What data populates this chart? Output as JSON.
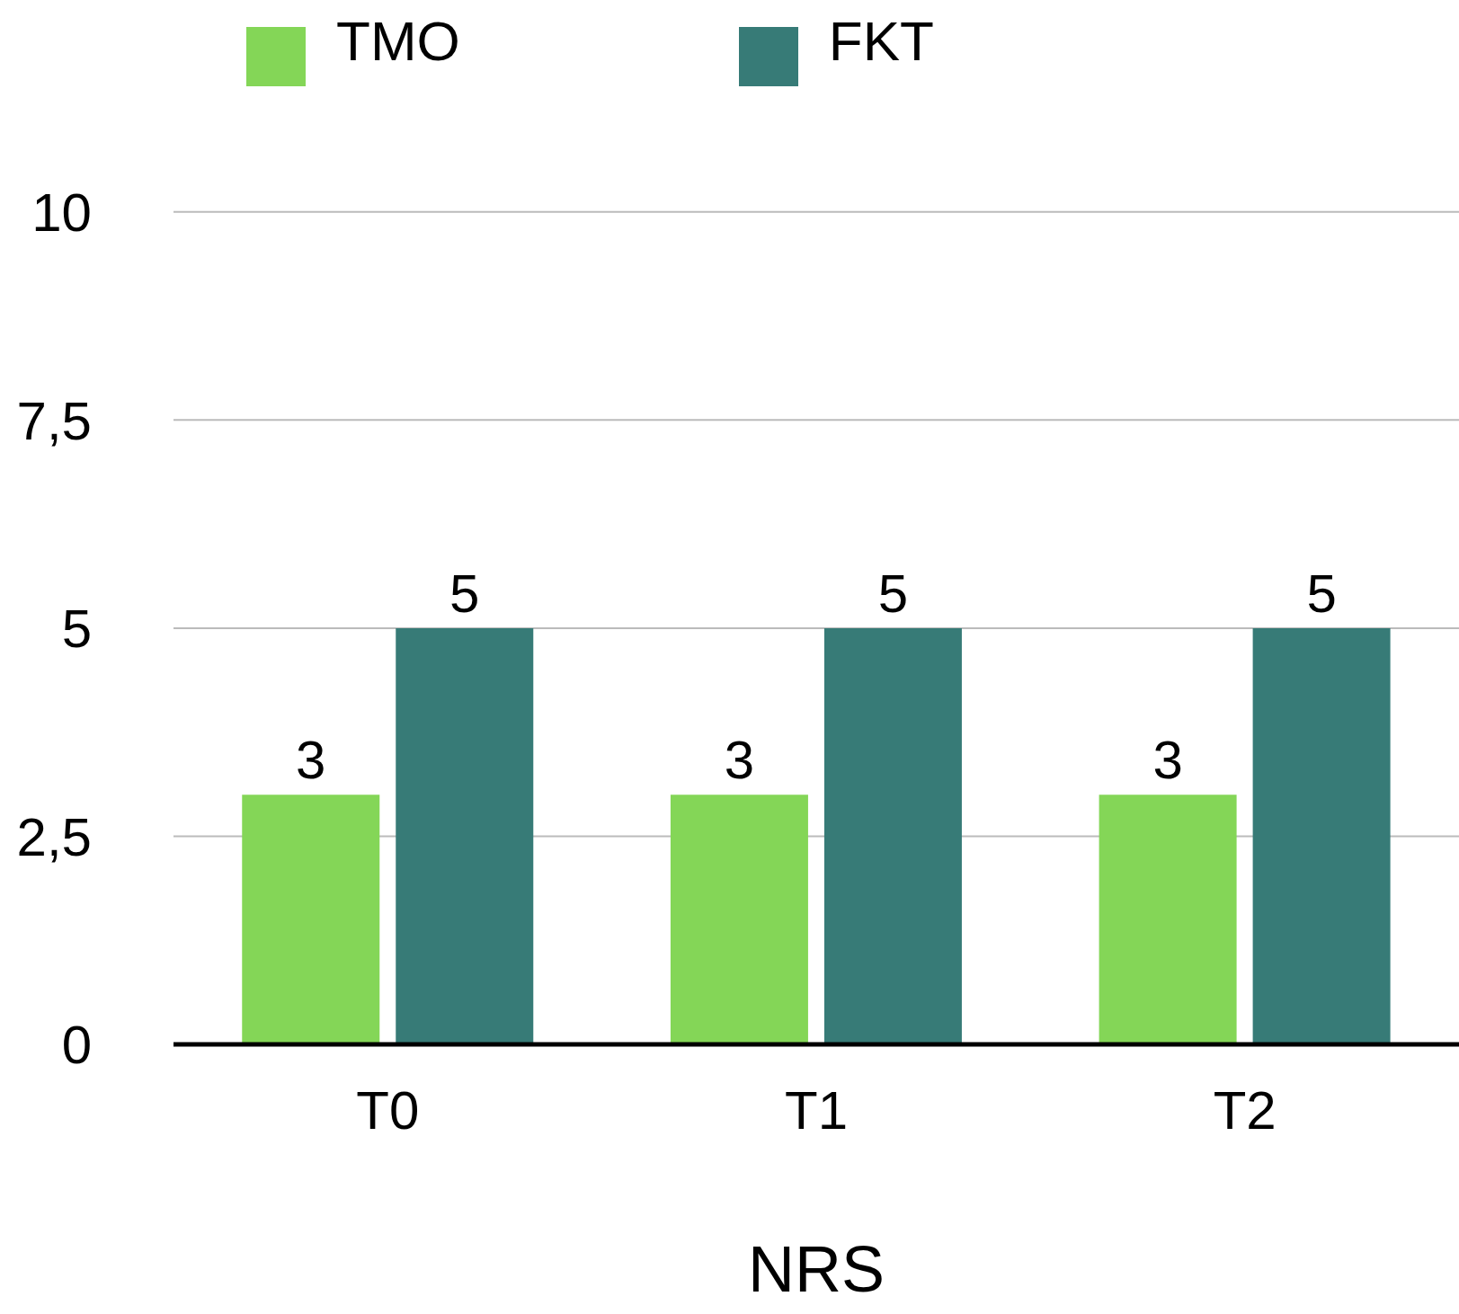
{
  "chart_data": {
    "type": "bar",
    "categories": [
      "T0",
      "T1",
      "T2"
    ],
    "xlabel": "NRS",
    "series": [
      {
        "name": "TMO",
        "color": "#84d657",
        "values": [
          3,
          3,
          3
        ]
      },
      {
        "name": "FKT",
        "color": "#377b77",
        "values": [
          5,
          5,
          5
        ]
      }
    ],
    "ylim": [
      0,
      10
    ],
    "yticks": [
      0,
      {
        "value": 2.5,
        "label": "2,5"
      },
      5,
      {
        "value": 7.5,
        "label": "7,5"
      },
      10
    ],
    "grid": "y",
    "legend": "top",
    "data_labels": true
  }
}
